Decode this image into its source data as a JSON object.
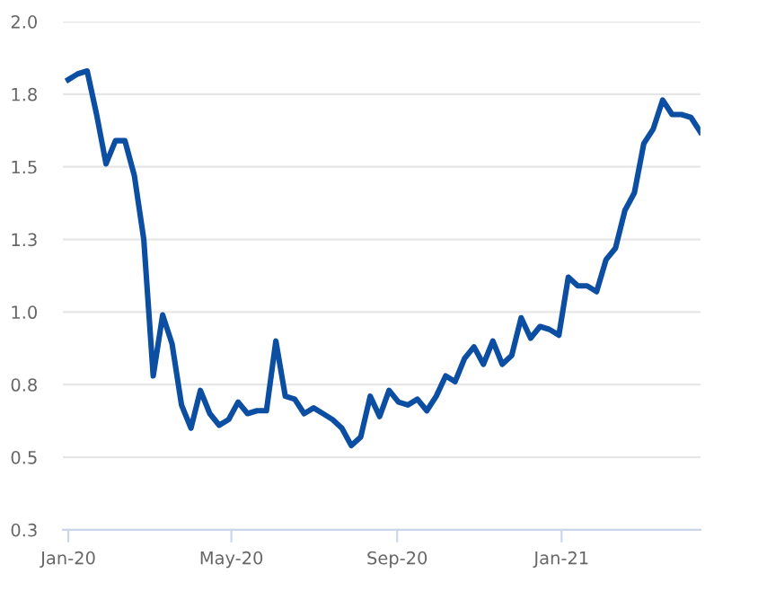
{
  "chart_data": {
    "type": "line",
    "x": [
      "2020-01-01",
      "2020-01-08",
      "2020-01-15",
      "2020-01-22",
      "2020-01-29",
      "2020-02-05",
      "2020-02-12",
      "2020-02-19",
      "2020-02-26",
      "2020-03-04",
      "2020-03-11",
      "2020-03-18",
      "2020-03-25",
      "2020-04-01",
      "2020-04-08",
      "2020-04-15",
      "2020-04-22",
      "2020-04-29",
      "2020-05-06",
      "2020-05-13",
      "2020-05-20",
      "2020-05-27",
      "2020-06-03",
      "2020-06-10",
      "2020-06-17",
      "2020-06-24",
      "2020-07-01",
      "2020-07-08",
      "2020-07-15",
      "2020-07-22",
      "2020-07-29",
      "2020-08-05",
      "2020-08-12",
      "2020-08-19",
      "2020-08-26",
      "2020-09-02",
      "2020-09-09",
      "2020-09-16",
      "2020-09-23",
      "2020-09-30",
      "2020-10-07",
      "2020-10-14",
      "2020-10-21",
      "2020-10-28",
      "2020-11-04",
      "2020-11-11",
      "2020-11-18",
      "2020-11-25",
      "2020-12-02",
      "2020-12-09",
      "2020-12-16",
      "2020-12-23",
      "2020-12-30",
      "2021-01-06",
      "2021-01-13",
      "2021-01-20",
      "2021-01-27",
      "2021-02-03",
      "2021-02-10",
      "2021-02-17",
      "2021-02-24",
      "2021-03-03",
      "2021-03-10",
      "2021-03-17",
      "2021-03-24",
      "2021-03-31",
      "2021-04-07",
      "2021-04-14"
    ],
    "series": [
      {
        "color": "#0b4ea2",
        "values": [
          1.8,
          1.82,
          1.83,
          1.68,
          1.51,
          1.59,
          1.59,
          1.47,
          1.25,
          0.78,
          0.99,
          0.89,
          0.68,
          0.6,
          0.73,
          0.65,
          0.61,
          0.63,
          0.69,
          0.65,
          0.66,
          0.66,
          0.9,
          0.71,
          0.7,
          0.65,
          0.67,
          0.65,
          0.63,
          0.6,
          0.54,
          0.57,
          0.71,
          0.64,
          0.73,
          0.69,
          0.68,
          0.7,
          0.66,
          0.71,
          0.78,
          0.76,
          0.84,
          0.88,
          0.82,
          0.9,
          0.82,
          0.85,
          0.98,
          0.91,
          0.95,
          0.94,
          0.92,
          1.12,
          1.09,
          1.09,
          1.07,
          1.18,
          1.22,
          1.35,
          1.41,
          1.58,
          1.63,
          1.73,
          1.68,
          1.68,
          1.67,
          1.62
        ]
      }
    ],
    "xlim": [
      "2019-12-28",
      "2021-04-14"
    ],
    "xticks": [
      {
        "value": "2020-01-01",
        "label": "Jan-20"
      },
      {
        "value": "2020-05-01",
        "label": "May-20"
      },
      {
        "value": "2020-09-01",
        "label": "Sep-20"
      },
      {
        "value": "2021-01-01",
        "label": "Jan-21"
      }
    ],
    "ylim": [
      0.25,
      2.0
    ],
    "yticks": [
      {
        "value": 0.25,
        "label": "0.3"
      },
      {
        "value": 0.5,
        "label": "0.5"
      },
      {
        "value": 0.75,
        "label": "0.8"
      },
      {
        "value": 1.0,
        "label": "1.0"
      },
      {
        "value": 1.25,
        "label": "1.3"
      },
      {
        "value": 1.5,
        "label": "1.5"
      },
      {
        "value": 1.75,
        "label": "1.8"
      },
      {
        "value": 2.0,
        "label": "2.0"
      }
    ],
    "grid": "y",
    "marker": "none",
    "line_style": "solid"
  }
}
